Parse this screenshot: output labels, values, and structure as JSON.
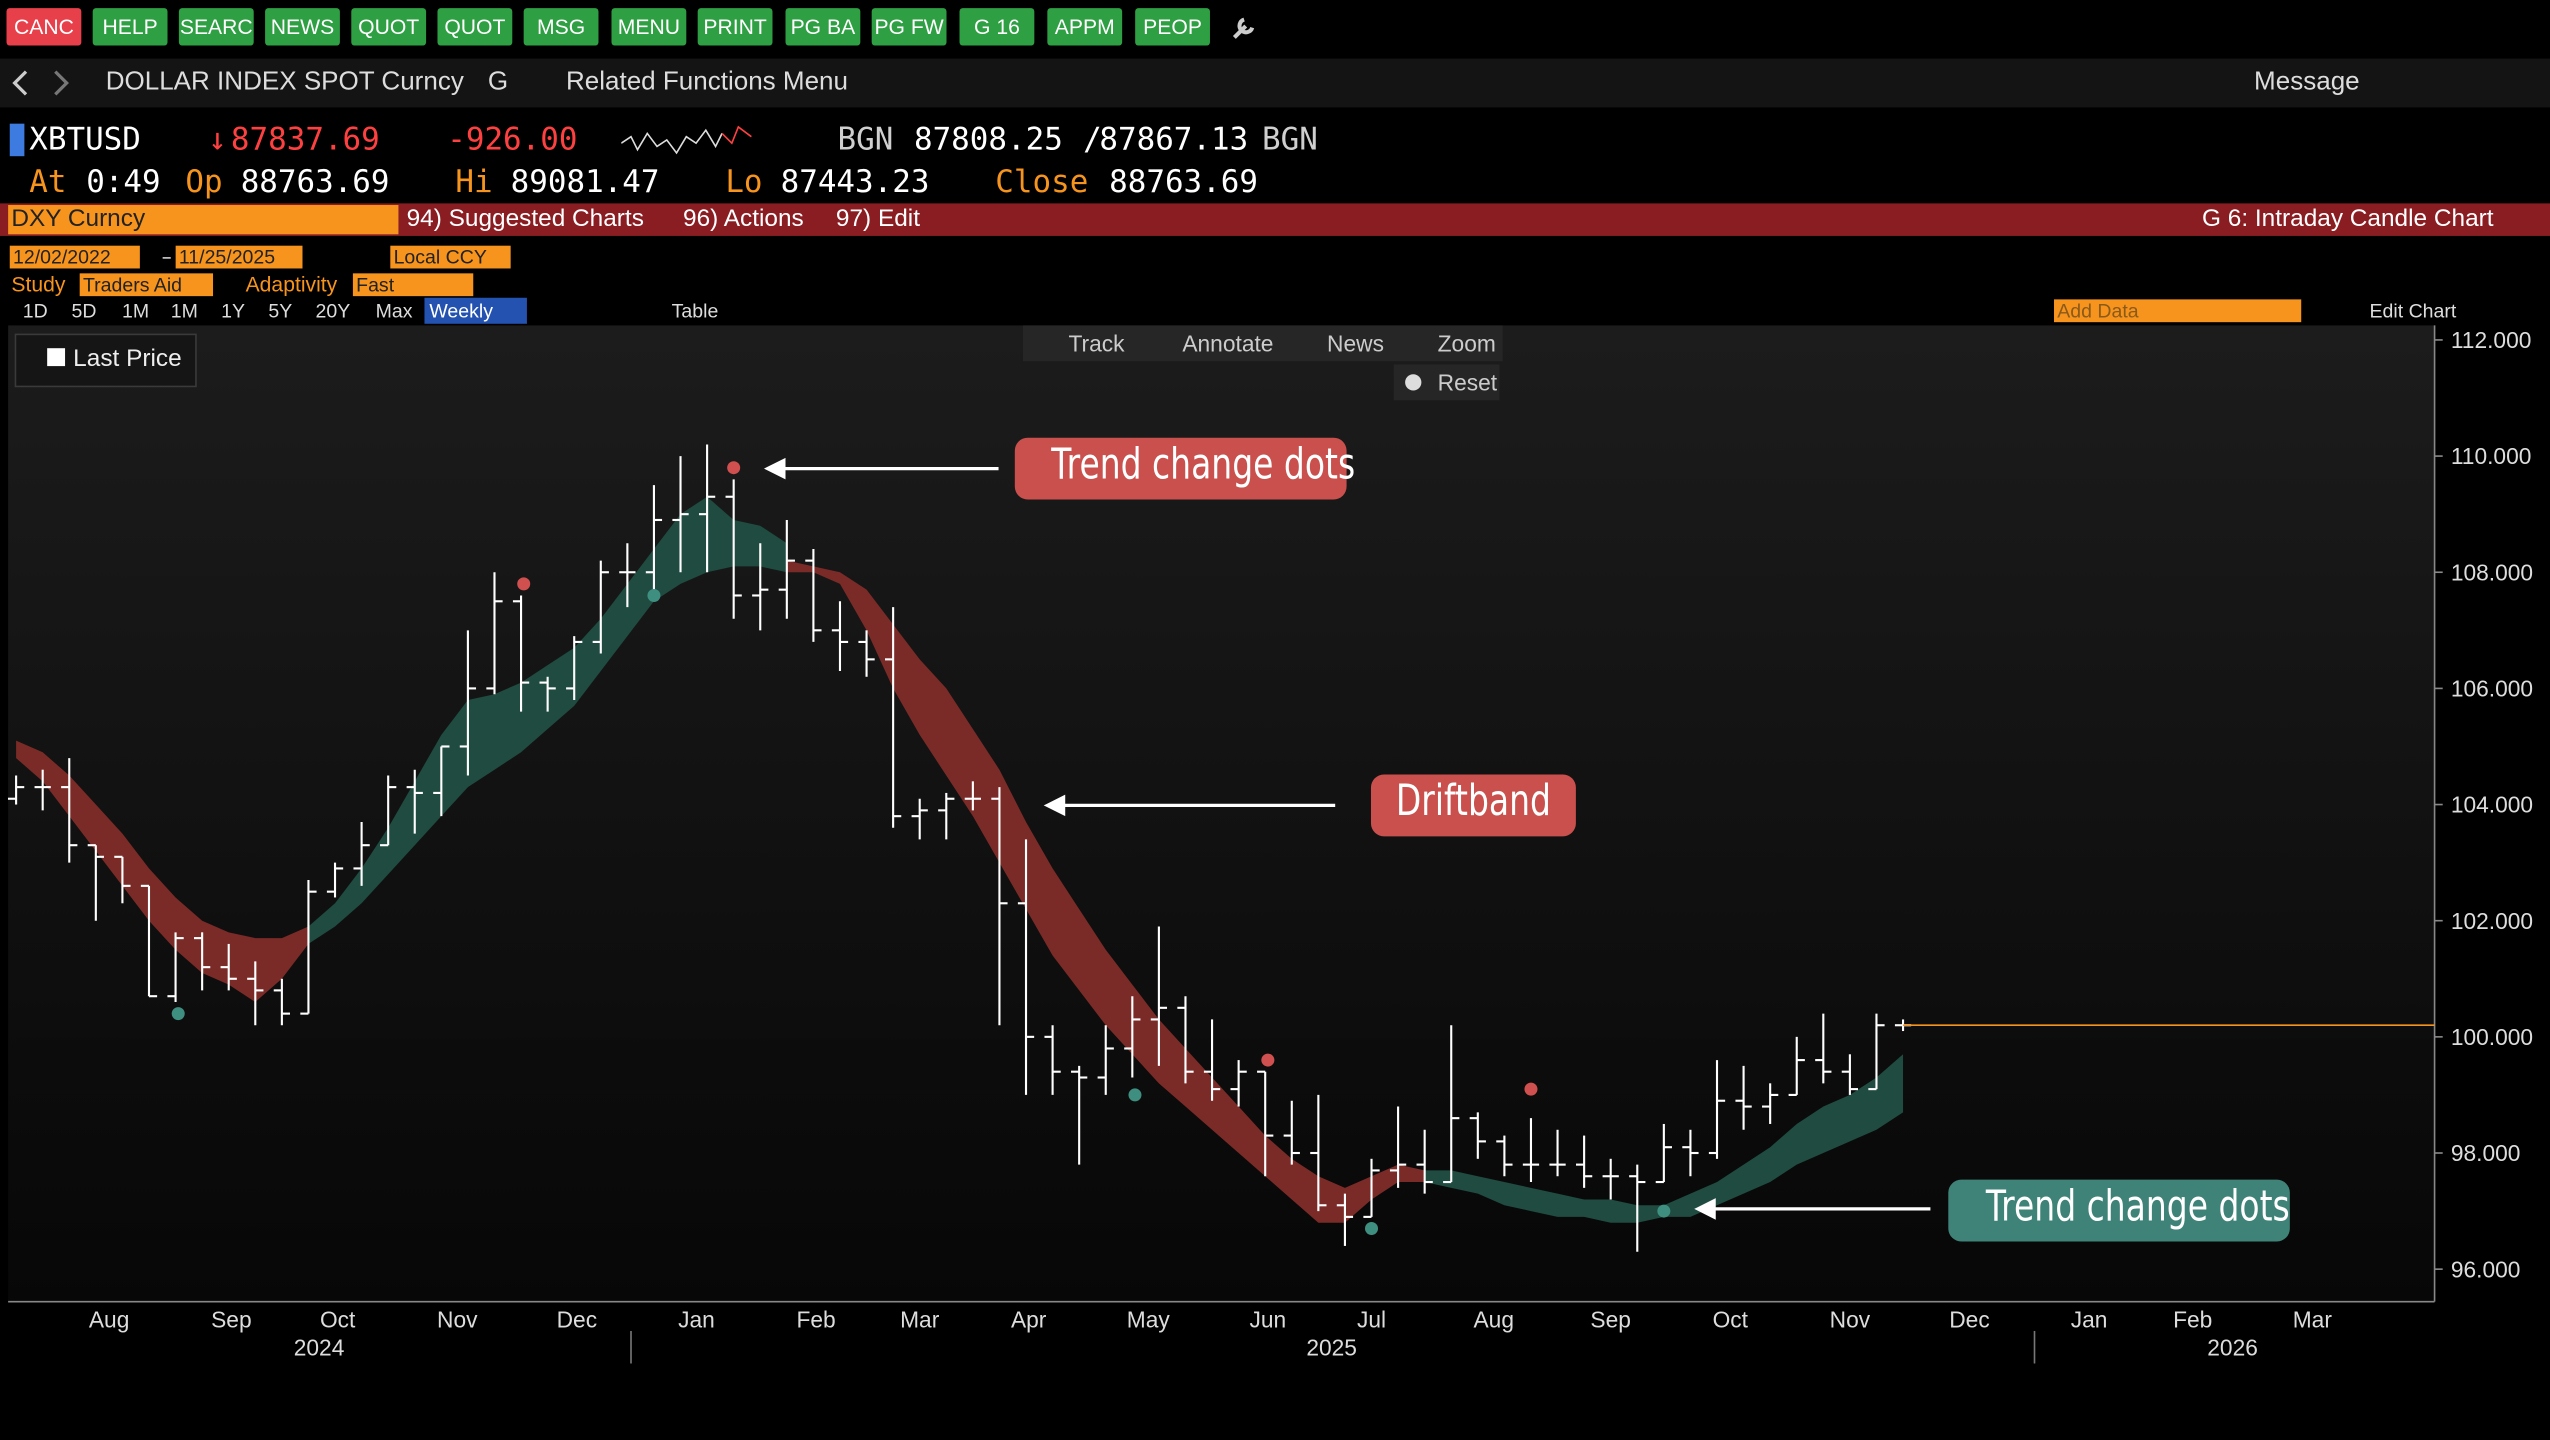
{
  "toolbar": {
    "buttons": [
      "CANC",
      "HELP",
      "SEARC",
      "NEWS",
      "QUOT",
      "QUOT",
      "MSG",
      "MENU",
      "PRINT",
      "PG BA",
      "PG FW",
      "G 16",
      "APPM",
      "PEOP"
    ],
    "security": "DOLLAR INDEX SPOT Curncy",
    "page": "G",
    "menu": "Related Functions Menu",
    "message": "Message"
  },
  "quote": {
    "ticker": "XBTUSD",
    "last": "87837.69",
    "change": "-926.00",
    "source": "BGN",
    "bid": "87808.25",
    "ask": "87867.13",
    "source2": "BGN",
    "at_label": "At",
    "at": "0:49",
    "open_label": "Op",
    "open": "88763.69",
    "high_label": "Hi",
    "high": "89081.47",
    "low_label": "Lo",
    "low": "87443.23",
    "close_label": "Close",
    "close": "88763.69"
  },
  "menu_bar": {
    "security": "DXY Curncy",
    "items": [
      "94) Suggested Charts",
      "96) Actions",
      "97) Edit"
    ],
    "function": "G 6: Intraday Candle Chart"
  },
  "controls": {
    "start_date": "12/02/2022",
    "end_date": "11/25/2025",
    "currency": "Local CCY",
    "study_label": "Study",
    "study": "Traders Aid",
    "adaptivity_label": "Adaptivity",
    "adaptivity": "Fast",
    "periods": [
      "1D",
      "5D",
      "1M",
      "1M",
      "1Y",
      "5Y",
      "20Y",
      "Max"
    ],
    "frequency": "Weekly",
    "table": "Table",
    "add_data": "Add Data",
    "edit_chart": "Edit Chart",
    "tools": [
      "Track",
      "Annotate",
      "News",
      "Zoom"
    ],
    "reset": "Reset"
  },
  "chart_data": {
    "type": "ohlc",
    "categories": [
      null,
      null,
      null,
      null,
      null,
      null,
      null,
      null,
      null,
      null,
      null,
      null,
      null,
      null,
      null,
      null,
      null,
      null,
      null,
      null,
      null,
      null,
      null,
      null,
      null,
      null,
      null,
      null,
      null,
      null,
      null,
      null,
      null,
      null,
      null,
      null,
      null,
      null,
      null,
      null,
      null,
      null,
      null,
      null,
      null,
      null,
      null,
      null,
      null,
      null,
      null,
      null,
      null,
      null,
      null,
      null,
      null,
      null,
      null,
      null,
      null,
      null,
      null,
      null,
      null,
      null,
      null,
      null,
      null,
      null,
      null,
      null
    ],
    "series": [
      {
        "name": "Last Price",
        "color": "#ffffff",
        "open": [
          104.1,
          104.3,
          104.3,
          103.3,
          103.1,
          102.6,
          100.7,
          101.7,
          101.2,
          101.0,
          100.8,
          100.4,
          102.5,
          102.9,
          103.3,
          104.3,
          104.2,
          105.0,
          106.0,
          107.5,
          106.1,
          106.0,
          106.8,
          108.0,
          108.0,
          108.9,
          109.0,
          109.3,
          107.6,
          107.7,
          108.2,
          107.0,
          106.8,
          106.5,
          103.8,
          103.9,
          104.1,
          104.1,
          102.3,
          100.0,
          99.4,
          99.3,
          99.8,
          100.3,
          100.5,
          99.4,
          99.1,
          99.4,
          98.3,
          98.0,
          97.1,
          96.9,
          97.7,
          97.8,
          97.5,
          98.6,
          98.2,
          97.8,
          97.8,
          97.8,
          97.6,
          97.6,
          97.5,
          98.1,
          98.0,
          98.9,
          98.8,
          99.0,
          99.6,
          99.4,
          99.1,
          100.2
        ],
        "high": [
          104.5,
          104.6,
          104.8,
          103.3,
          103.1,
          102.6,
          101.8,
          101.8,
          101.6,
          101.3,
          101.0,
          102.7,
          103.0,
          103.7,
          104.5,
          104.6,
          105.0,
          107.0,
          108.0,
          107.6,
          106.2,
          106.9,
          108.2,
          108.5,
          109.5,
          110.0,
          110.2,
          109.6,
          108.5,
          108.9,
          108.4,
          107.5,
          107.0,
          107.4,
          104.1,
          104.2,
          104.4,
          104.3,
          103.4,
          100.2,
          99.5,
          100.2,
          100.7,
          101.9,
          100.7,
          100.3,
          99.6,
          99.4,
          98.9,
          99.0,
          97.3,
          97.9,
          98.8,
          98.4,
          100.2,
          98.7,
          98.3,
          98.6,
          98.4,
          98.3,
          97.9,
          97.8,
          98.5,
          98.4,
          99.6,
          99.5,
          99.2,
          100.0,
          100.4,
          99.7,
          100.4,
          100.3
        ],
        "low": [
          104.0,
          103.9,
          103.0,
          102.0,
          102.3,
          100.7,
          100.6,
          100.8,
          100.8,
          100.2,
          100.2,
          100.4,
          102.4,
          102.6,
          103.3,
          103.5,
          103.8,
          104.5,
          105.9,
          105.6,
          105.6,
          105.8,
          106.6,
          107.4,
          107.6,
          108.0,
          108.0,
          107.2,
          107.0,
          107.2,
          106.8,
          106.3,
          106.2,
          103.6,
          103.4,
          103.4,
          103.9,
          100.2,
          99.0,
          99.0,
          97.8,
          99.0,
          99.3,
          99.5,
          99.2,
          98.9,
          98.8,
          97.6,
          97.8,
          97.0,
          96.4,
          96.9,
          97.4,
          97.3,
          97.5,
          97.9,
          97.6,
          97.5,
          97.6,
          97.4,
          97.2,
          96.3,
          97.5,
          97.6,
          97.9,
          98.4,
          98.5,
          99.0,
          99.2,
          99.0,
          99.1,
          100.1
        ],
        "close": [
          104.3,
          104.3,
          103.3,
          103.1,
          102.6,
          100.7,
          101.7,
          101.2,
          101.0,
          100.8,
          100.4,
          102.5,
          102.9,
          103.3,
          104.3,
          104.2,
          105.0,
          106.0,
          107.5,
          106.1,
          106.0,
          106.8,
          108.0,
          108.0,
          108.9,
          109.0,
          109.3,
          107.6,
          107.7,
          108.2,
          107.0,
          106.8,
          106.5,
          103.8,
          103.9,
          104.1,
          104.1,
          102.3,
          100.0,
          99.4,
          99.3,
          99.8,
          100.3,
          100.5,
          99.4,
          99.1,
          99.4,
          98.3,
          98.0,
          97.1,
          96.9,
          97.7,
          97.8,
          97.5,
          98.6,
          98.2,
          97.8,
          97.8,
          97.8,
          97.6,
          97.6,
          97.5,
          98.1,
          98.0,
          98.9,
          98.8,
          99.0,
          99.6,
          99.4,
          99.1,
          100.2,
          100.2
        ]
      }
    ],
    "bands": [
      {
        "color": "#7a2b27",
        "x": [
          0,
          1,
          2,
          3,
          4,
          5,
          6,
          7,
          8,
          9,
          10,
          11
        ],
        "upper": [
          105.1,
          104.9,
          104.5,
          104.0,
          103.5,
          102.9,
          102.4,
          102.0,
          101.8,
          101.7,
          101.7,
          101.9
        ],
        "lower": [
          104.8,
          104.4,
          103.8,
          103.2,
          102.6,
          102.0,
          101.5,
          101.1,
          100.9,
          100.6,
          101.0,
          101.6
        ]
      },
      {
        "color": "#1f4b41",
        "x": [
          11,
          12,
          13,
          14,
          15,
          16,
          17,
          18,
          19,
          20,
          21,
          22,
          23,
          24,
          25,
          26,
          27,
          28,
          29
        ],
        "upper": [
          101.9,
          102.3,
          102.9,
          103.6,
          104.4,
          105.2,
          105.8,
          105.9,
          106.1,
          106.4,
          106.7,
          107.2,
          107.8,
          108.4,
          109.0,
          109.3,
          108.9,
          108.8,
          108.5
        ],
        "lower": [
          101.6,
          101.9,
          102.3,
          102.8,
          103.3,
          103.8,
          104.3,
          104.6,
          104.9,
          105.3,
          105.7,
          106.3,
          106.9,
          107.5,
          107.8,
          108.0,
          108.1,
          108.1,
          108.0
        ]
      },
      {
        "color": "#7a2b27",
        "x": [
          29,
          30,
          31,
          32,
          33,
          34,
          35,
          36,
          37,
          38,
          39,
          40,
          41,
          42,
          43,
          44,
          45,
          46,
          47,
          48,
          49,
          50,
          51,
          52,
          53
        ],
        "upper": [
          108.2,
          108.1,
          108.0,
          107.7,
          107.1,
          106.5,
          106.0,
          105.3,
          104.6,
          103.7,
          102.9,
          102.2,
          101.5,
          100.9,
          100.3,
          99.8,
          99.3,
          98.8,
          98.3,
          97.9,
          97.6,
          97.4,
          97.6,
          97.8,
          97.7
        ],
        "lower": [
          108.0,
          108.0,
          107.8,
          107.0,
          106.0,
          105.2,
          104.5,
          103.8,
          103.0,
          102.2,
          101.4,
          100.8,
          100.2,
          99.7,
          99.2,
          98.8,
          98.4,
          98.0,
          97.6,
          97.2,
          96.8,
          96.8,
          97.2,
          97.5,
          97.5
        ]
      },
      {
        "color": "#1f4b41",
        "x": [
          53,
          54,
          55,
          56,
          57,
          58,
          59,
          60,
          61,
          62,
          63,
          64,
          65,
          66,
          67,
          68,
          69,
          70,
          71
        ],
        "upper": [
          97.7,
          97.7,
          97.6,
          97.5,
          97.4,
          97.3,
          97.2,
          97.2,
          97.1,
          97.1,
          97.3,
          97.5,
          97.8,
          98.1,
          98.5,
          98.8,
          99.0,
          99.3,
          99.7
        ],
        "lower": [
          97.5,
          97.4,
          97.3,
          97.1,
          97.0,
          96.9,
          96.9,
          96.8,
          96.8,
          96.9,
          96.9,
          97.1,
          97.3,
          97.5,
          97.8,
          98.0,
          98.2,
          98.4,
          98.7
        ]
      }
    ],
    "dots": [
      {
        "color": "#3f8f80",
        "x": [
          6.1,
          24,
          42.1,
          51,
          62
        ],
        "values": [
          100.4,
          107.6,
          99.0,
          96.7,
          97.0
        ]
      },
      {
        "color": "#d0504f",
        "x": [
          19.1,
          27,
          47.1,
          57
        ],
        "values": [
          107.8,
          109.8,
          99.6,
          99.1
        ]
      }
    ],
    "last_price_color": "#f7941d",
    "annotations": [
      {
        "text": "Trend change dots",
        "color": "#c9504c"
      },
      {
        "text": "Driftband",
        "color": "#c9504c"
      },
      {
        "text": "Trend change dots",
        "color": "#3f8378"
      }
    ],
    "xlim": [
      -0.3,
      91
    ],
    "ylim": [
      95.44,
      112.25
    ],
    "yticks": [
      {
        "value": 96,
        "label": "96.000"
      },
      {
        "value": 98,
        "label": "98.000"
      },
      {
        "value": 100,
        "label": "100.000"
      },
      {
        "value": 102,
        "label": "102.000"
      },
      {
        "value": 104,
        "label": "104.000"
      },
      {
        "value": 106,
        "label": "106.000"
      },
      {
        "value": 108,
        "label": "108.000"
      },
      {
        "value": 110,
        "label": "110.000"
      },
      {
        "value": 112,
        "label": "112.000"
      }
    ],
    "xticks": [
      {
        "value": 3.5,
        "label": "Aug"
      },
      {
        "value": 8.1,
        "label": "Sep"
      },
      {
        "value": 12.1,
        "label": "Oct"
      },
      {
        "value": 16.6,
        "label": "Nov"
      },
      {
        "value": 21.1,
        "label": "Dec"
      },
      {
        "value": 25.6,
        "label": "Jan"
      },
      {
        "value": 30.1,
        "label": "Feb"
      },
      {
        "value": 34.0,
        "label": "Mar"
      },
      {
        "value": 38.1,
        "label": "Apr"
      },
      {
        "value": 42.6,
        "label": "May"
      },
      {
        "value": 47.1,
        "label": "Jun"
      },
      {
        "value": 51.0,
        "label": "Jul"
      },
      {
        "value": 55.6,
        "label": "Aug"
      },
      {
        "value": 60.0,
        "label": "Sep"
      },
      {
        "value": 64.5,
        "label": "Oct"
      },
      {
        "value": 69.0,
        "label": "Nov"
      },
      {
        "value": 73.5,
        "label": "Dec"
      },
      {
        "value": 78.0,
        "label": "Jan"
      },
      {
        "value": 81.9,
        "label": "Feb"
      },
      {
        "value": 86.4,
        "label": "Mar"
      }
    ],
    "year_ticks": [
      {
        "value": 11.4,
        "label": "2024"
      },
      {
        "value": 49.5,
        "label": "2025"
      },
      {
        "value": 83.4,
        "label": "2026"
      }
    ],
    "grid": false
  }
}
